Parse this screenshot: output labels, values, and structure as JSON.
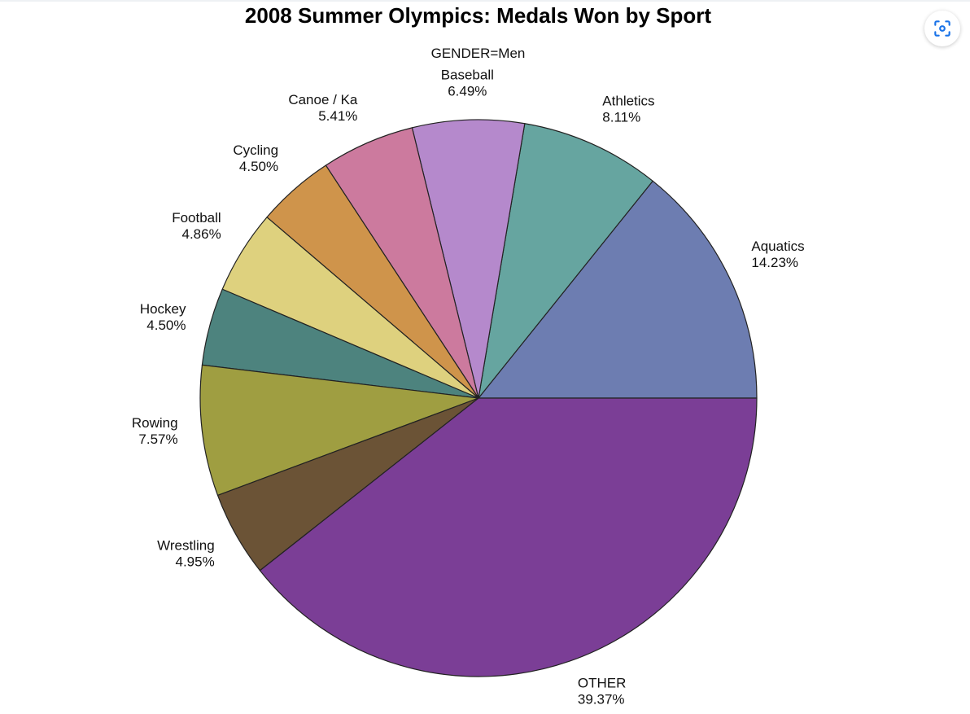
{
  "chart_data": {
    "type": "pie",
    "title": "2008 Summer Olympics: Medals Won by Sport",
    "subtitle": "GENDER=Men",
    "slices": [
      {
        "label": "Aquatics",
        "pct_label": "14.23%",
        "value": 14.23,
        "color": "#6d7db1"
      },
      {
        "label": "Athletics",
        "pct_label": "8.11%",
        "value": 8.11,
        "color": "#66a5a0"
      },
      {
        "label": "Baseball",
        "pct_label": "6.49%",
        "value": 6.49,
        "color": "#b589cc"
      },
      {
        "label": "Canoe / Ka",
        "pct_label": "5.41%",
        "value": 5.41,
        "color": "#cc7a9e"
      },
      {
        "label": "Cycling",
        "pct_label": "4.50%",
        "value": 4.5,
        "color": "#cf944b"
      },
      {
        "label": "Football",
        "pct_label": "4.86%",
        "value": 4.86,
        "color": "#ded17e"
      },
      {
        "label": "Hockey",
        "pct_label": "4.50%",
        "value": 4.5,
        "color": "#4d837e"
      },
      {
        "label": "Rowing",
        "pct_label": "7.57%",
        "value": 7.57,
        "color": "#9f9e41"
      },
      {
        "label": "Wrestling",
        "pct_label": "4.95%",
        "value": 4.95,
        "color": "#6b5336"
      },
      {
        "label": "OTHER",
        "pct_label": "39.37%",
        "value": 39.37,
        "color": "#7b3e96"
      }
    ]
  },
  "toolbar": {
    "focus_icon": "focus-scan-icon",
    "icon_color": "#1a73e8"
  }
}
